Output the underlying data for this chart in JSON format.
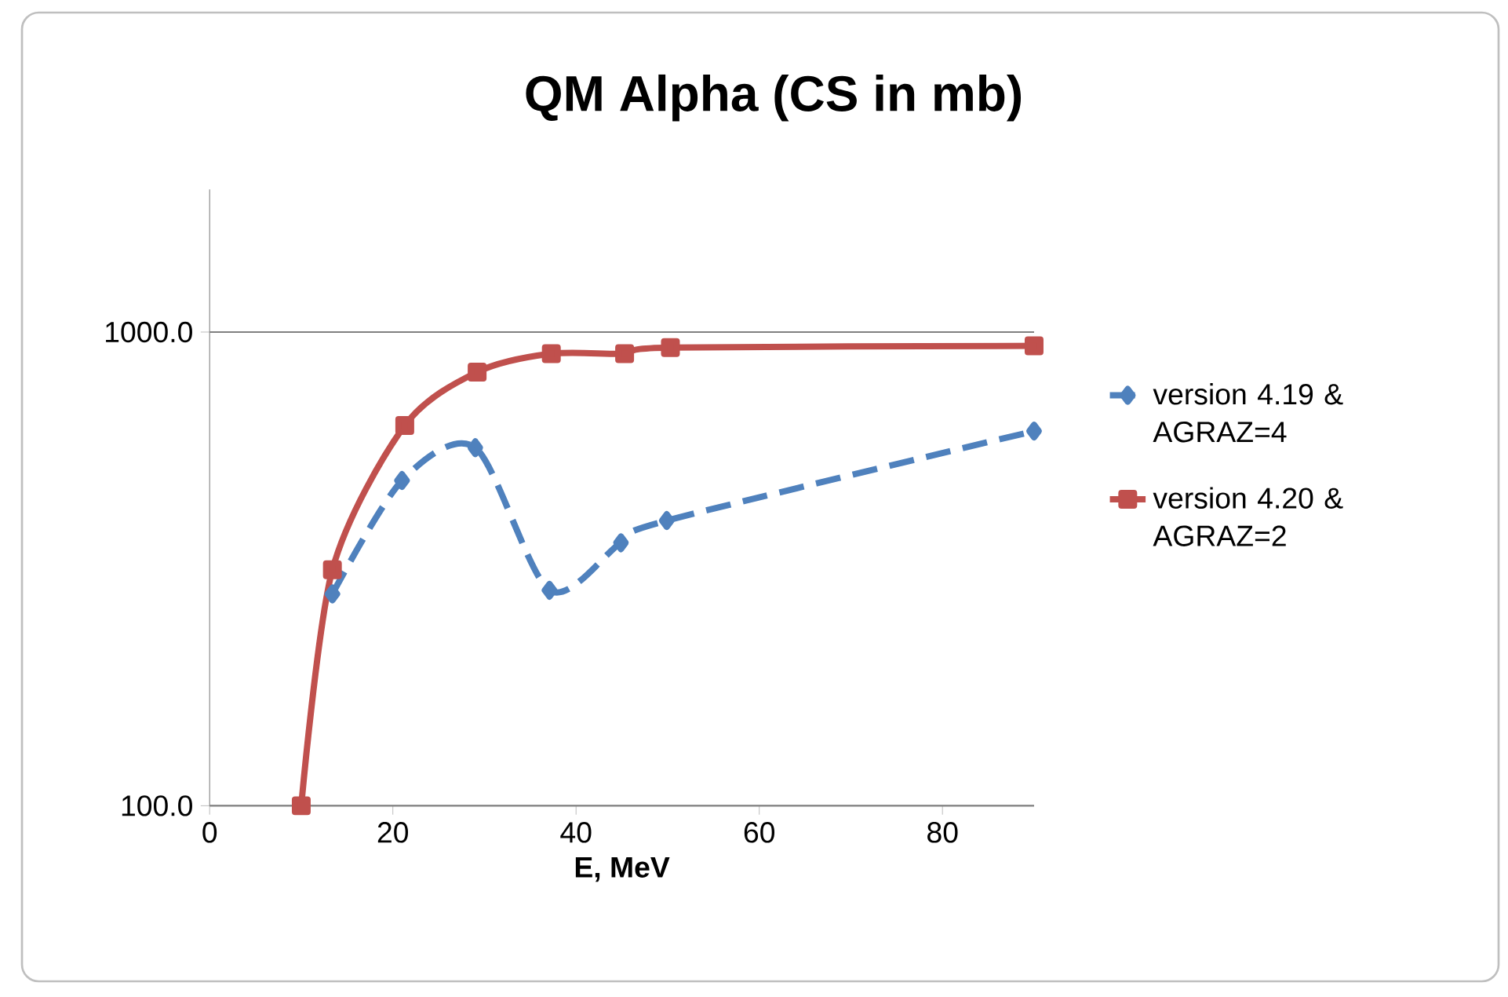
{
  "chart_data": {
    "type": "line",
    "title": "QM   Alpha  (CS in mb)",
    "xlabel": "E, MeV",
    "log": "y",
    "grid": "y",
    "legend": "right",
    "xlim": [
      0,
      90
    ],
    "xticks": [
      0,
      20,
      40,
      60,
      80
    ],
    "ylim": [
      100,
      2000
    ],
    "yticks": [
      {
        "value": 100,
        "label": "100.0"
      },
      {
        "value": 1000,
        "label": "1000.0"
      }
    ],
    "series": [
      {
        "name": "version 4.19 & AGRAZ=4",
        "color": "#4f81bd",
        "marker": "diamond",
        "line_style": "dashed",
        "x": [
          13.4,
          21,
          29,
          37.1,
          44.9,
          49.9,
          90
        ],
        "values": [
          280,
          486,
          570,
          285,
          359,
          400,
          618
        ]
      },
      {
        "name": "version 4.20 & AGRAZ=2",
        "color": "#c0504d",
        "marker": "square",
        "line_style": "solid",
        "x": [
          10,
          13.4,
          21.3,
          29.2,
          37.3,
          45.3,
          50.3,
          90
        ],
        "values": [
          100,
          315,
          635,
          823,
          900,
          900,
          927,
          935
        ]
      }
    ]
  }
}
